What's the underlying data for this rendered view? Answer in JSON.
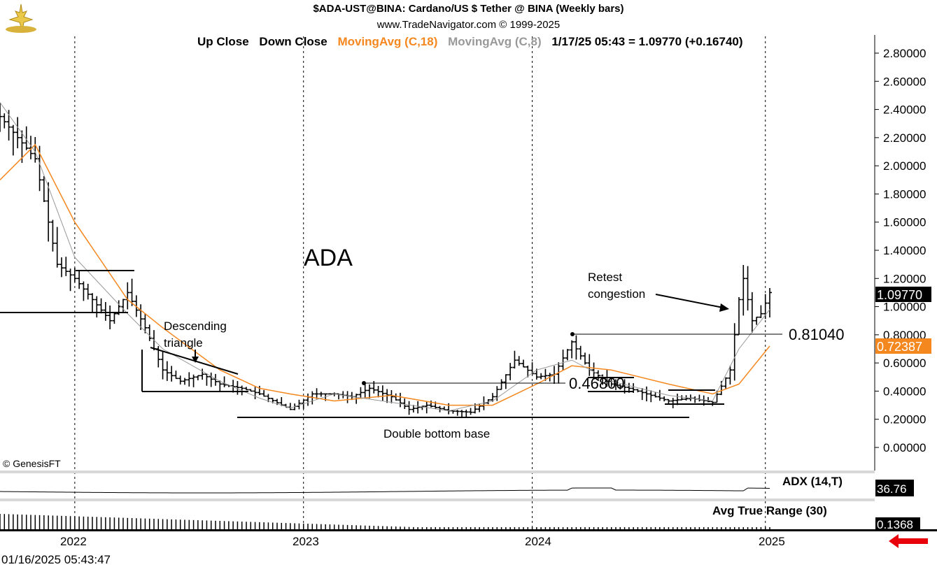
{
  "header": {
    "title": "$ADA-UST@BINA:  Cardano/US $ Tether @ BINA  (Weekly bars)",
    "subtitle": "www.TradeNavigator.com © 1999-2025"
  },
  "legend": {
    "up_close": "Up Close",
    "down_close": "Down Close",
    "ma18": "MovingAvg (C,18)",
    "ma8": "MovingAvg (C,8)",
    "quote": "1/17/25 05:43 = 1.09770 (+0.16740)"
  },
  "colors": {
    "ma18": "#f5871f",
    "ma8": "#999999",
    "bars": "#000000",
    "price_tag": "#000000",
    "ma18_tag": "#f5871f",
    "arrow": "#e8000b"
  },
  "annotations": {
    "ticker": "ADA",
    "descending_triangle": [
      "Descending",
      "triangle"
    ],
    "retest": [
      "Retest",
      "congestion"
    ],
    "double_bottom": "Double bottom base",
    "level_081": "0.81040",
    "level_047": "0.46800",
    "copyright": "© GenesisFT"
  },
  "right_axis": {
    "ticks": [
      "2.80000",
      "2.60000",
      "2.40000",
      "2.20000",
      "2.00000",
      "1.80000",
      "1.60000",
      "1.40000",
      "1.20000",
      "1.00000",
      "0.80000",
      "0.60000",
      "0.40000",
      "0.20000",
      "0.00000"
    ],
    "last_price": "1.09770",
    "ma18_value": "0.72387"
  },
  "indicators": {
    "adx_label": "ADX (14,T)",
    "adx_value": "36.76",
    "atr_label": "Avg True Range (30)",
    "atr_value": "0.1368"
  },
  "x_axis": {
    "labels": [
      "2022",
      "2023",
      "2024",
      "2025"
    ],
    "timestamp": "01/16/2025 05:43:47"
  },
  "chart_data": {
    "type": "bar",
    "title": "$ADA-UST@BINA:  Cardano/US $ Tether @ BINA  (Weekly bars)",
    "y_range": [
      0,
      2.8
    ],
    "x_range": [
      "2021-09-06",
      "2025-01-13"
    ],
    "series": [
      {
        "name": "Weekly bars",
        "close_points": [
          [
            "2021-09-06",
            2.35
          ],
          [
            "2021-10-04",
            2.2
          ],
          [
            "2021-11-01",
            2.05
          ],
          [
            "2021-12-06",
            1.3
          ],
          [
            "2022-01-03",
            1.2
          ],
          [
            "2022-01-31",
            1.05
          ],
          [
            "2022-02-28",
            0.9
          ],
          [
            "2022-03-28",
            1.1
          ],
          [
            "2022-04-25",
            0.85
          ],
          [
            "2022-05-23",
            0.55
          ],
          [
            "2022-06-20",
            0.47
          ],
          [
            "2022-07-25",
            0.52
          ],
          [
            "2022-08-22",
            0.45
          ],
          [
            "2022-09-26",
            0.42
          ],
          [
            "2022-10-24",
            0.38
          ],
          [
            "2022-12-12",
            0.27
          ],
          [
            "2023-01-16",
            0.38
          ],
          [
            "2023-02-20",
            0.38
          ],
          [
            "2023-03-20",
            0.36
          ],
          [
            "2023-04-17",
            0.42
          ],
          [
            "2023-05-22",
            0.36
          ],
          [
            "2023-06-19",
            0.27
          ],
          [
            "2023-07-17",
            0.3
          ],
          [
            "2023-08-21",
            0.26
          ],
          [
            "2023-09-25",
            0.25
          ],
          [
            "2023-10-30",
            0.36
          ],
          [
            "2023-12-04",
            0.62
          ],
          [
            "2024-01-08",
            0.5
          ],
          [
            "2024-02-05",
            0.52
          ],
          [
            "2024-03-04",
            0.75
          ],
          [
            "2024-04-01",
            0.55
          ],
          [
            "2024-05-06",
            0.45
          ],
          [
            "2024-06-03",
            0.42
          ],
          [
            "2024-07-01",
            0.38
          ],
          [
            "2024-08-05",
            0.33
          ],
          [
            "2024-09-09",
            0.35
          ],
          [
            "2024-10-14",
            0.32
          ],
          [
            "2024-11-11",
            0.55
          ],
          [
            "2024-11-25",
            1.05
          ],
          [
            "2024-12-02",
            1.2
          ],
          [
            "2024-12-16",
            0.9
          ],
          [
            "2024-12-30",
            0.95
          ],
          [
            "2025-01-13",
            1.1
          ]
        ]
      },
      {
        "name": "MovingAvg (C,18)",
        "points": [
          [
            "2021-09-06",
            1.9
          ],
          [
            "2021-11-01",
            2.15
          ],
          [
            "2022-01-03",
            1.6
          ],
          [
            "2022-03-28",
            1.05
          ],
          [
            "2022-05-23",
            0.85
          ],
          [
            "2022-08-22",
            0.55
          ],
          [
            "2022-10-24",
            0.42
          ],
          [
            "2022-12-12",
            0.38
          ],
          [
            "2023-02-20",
            0.33
          ],
          [
            "2023-05-22",
            0.37
          ],
          [
            "2023-08-21",
            0.3
          ],
          [
            "2023-10-30",
            0.3
          ],
          [
            "2024-01-08",
            0.45
          ],
          [
            "2024-03-04",
            0.58
          ],
          [
            "2024-05-06",
            0.55
          ],
          [
            "2024-08-05",
            0.45
          ],
          [
            "2024-10-14",
            0.38
          ],
          [
            "2024-11-25",
            0.45
          ],
          [
            "2025-01-13",
            0.72
          ]
        ]
      },
      {
        "name": "MovingAvg (C,8)",
        "points": [
          [
            "2021-09-06",
            2.45
          ],
          [
            "2021-11-01",
            2.1
          ],
          [
            "2022-01-03",
            1.35
          ],
          [
            "2022-03-28",
            0.95
          ],
          [
            "2022-05-23",
            0.7
          ],
          [
            "2022-08-22",
            0.47
          ],
          [
            "2022-10-24",
            0.35
          ],
          [
            "2022-12-12",
            0.28
          ],
          [
            "2023-02-20",
            0.38
          ],
          [
            "2023-05-22",
            0.32
          ],
          [
            "2023-08-21",
            0.26
          ],
          [
            "2023-10-30",
            0.33
          ],
          [
            "2024-01-08",
            0.55
          ],
          [
            "2024-03-04",
            0.62
          ],
          [
            "2024-05-06",
            0.47
          ],
          [
            "2024-08-05",
            0.37
          ],
          [
            "2024-10-14",
            0.33
          ],
          [
            "2024-11-25",
            0.7
          ],
          [
            "2025-01-13",
            0.98
          ]
        ]
      }
    ],
    "levels": [
      0.8104,
      0.468
    ],
    "adx_last": 36.76,
    "atr_last": 0.1368,
    "grid": "vertical dotted at year starts"
  }
}
